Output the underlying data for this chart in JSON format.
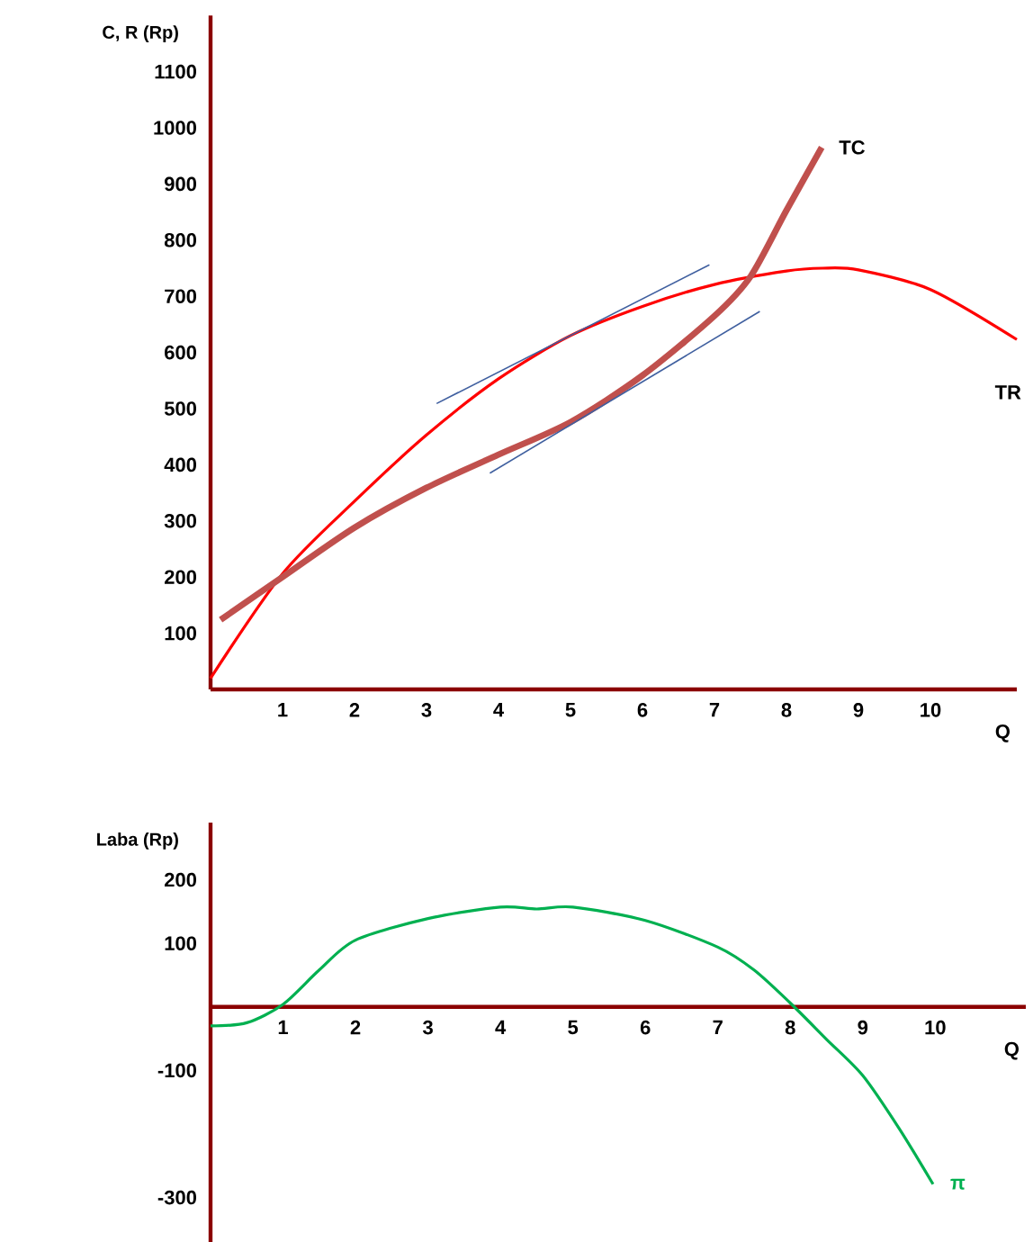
{
  "chart_data": [
    {
      "type": "line",
      "xlabel": "Q",
      "ylabel": "C, R (Rp)",
      "xlim": [
        0,
        11.2
      ],
      "ylim": [
        0,
        1200
      ],
      "xticks": [
        1,
        2,
        3,
        4,
        5,
        6,
        7,
        8,
        9,
        10
      ],
      "yticks": [
        100,
        200,
        300,
        400,
        500,
        600,
        700,
        800,
        900,
        1000,
        1100
      ],
      "series": [
        {
          "name": "TR",
          "color": "#ff0000",
          "x": [
            0,
            1,
            2,
            3,
            4,
            5,
            6,
            7,
            8,
            8.5,
            9,
            10,
            11.2
          ],
          "values": [
            20,
            206,
            335,
            453,
            553,
            630,
            682,
            721,
            745,
            750,
            747,
            712,
            623
          ]
        },
        {
          "name": "TC",
          "color": "#c0504d",
          "x": [
            0.14,
            1,
            2,
            3,
            4,
            5,
            6,
            7,
            7.5,
            8,
            8.49
          ],
          "values": [
            124,
            200,
            288,
            359,
            418,
            476,
            559,
            665,
            735,
            853,
            965
          ]
        },
        {
          "color": "#3f5f9f",
          "x": [
            3.14,
            6.93
          ],
          "values": [
            509,
            756
          ]
        },
        {
          "color": "#3f5f9f",
          "x": [
            3.88,
            7.63
          ],
          "values": [
            385,
            673
          ]
        }
      ]
    },
    {
      "type": "line",
      "xlabel": "Q",
      "ylabel": "Laba (Rp)",
      "xlim": [
        0,
        11.25
      ],
      "ylim": [
        -370,
        290
      ],
      "xticks": [
        1,
        2,
        3,
        4,
        5,
        6,
        7,
        8,
        9,
        10
      ],
      "yticks": [
        200,
        100,
        -100,
        -300
      ],
      "series": [
        {
          "name": "π",
          "color": "#00b050",
          "x": [
            0,
            0.5,
            1,
            1.5,
            2,
            3,
            4,
            4.5,
            5,
            6,
            7,
            7.5,
            8,
            8.5,
            9,
            9.5,
            9.97
          ],
          "values": [
            -30,
            -25,
            4,
            58,
            105,
            139,
            157,
            154,
            157,
            136,
            94,
            58,
            6,
            -51,
            -108,
            -191,
            -279
          ]
        }
      ]
    }
  ]
}
